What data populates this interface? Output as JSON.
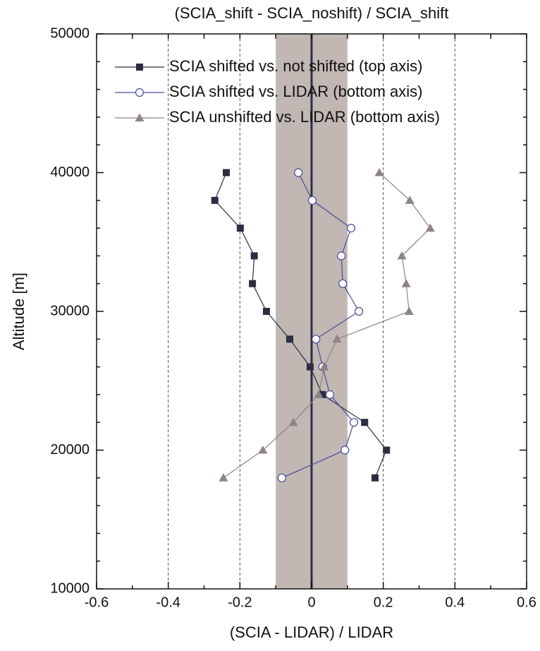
{
  "chart_data": {
    "type": "line",
    "title": "(SCIA_shift - SCIA_noshift) / SCIA_shift",
    "x_label": "(SCIA - LIDAR) / LIDAR",
    "y_label": "Altitude [m]",
    "y": [
      40000,
      38000,
      36000,
      34000,
      32000,
      30000,
      28000,
      26000,
      24000,
      22000,
      20000,
      18000
    ],
    "series": [
      {
        "name": "SCIA shifted vs. not shifted (top axis)",
        "color": "#2b2e40",
        "marker": "square",
        "axis": "x2",
        "values": [
          -0.238,
          -0.27,
          -0.199,
          -0.16,
          -0.165,
          -0.126,
          -0.061,
          -0.004,
          0.03,
          0.148,
          0.209,
          0.177
        ]
      },
      {
        "name": "SCIA shifted vs. LIDAR (bottom axis)",
        "color": "#4a4a9c",
        "marker": "circle",
        "axis": "x",
        "values": [
          -0.037,
          0.002,
          0.11,
          0.083,
          0.087,
          0.132,
          0.012,
          0.031,
          0.051,
          0.118,
          0.093,
          -0.083
        ]
      },
      {
        "name": "SCIA unshifted vs. LIDAR (bottom axis)",
        "color": "#8e8482",
        "marker": "triangle",
        "axis": "x",
        "values": [
          0.189,
          0.274,
          0.331,
          0.252,
          0.264,
          0.272,
          0.071,
          0.035,
          0.02,
          -0.051,
          -0.136,
          -0.246
        ]
      }
    ],
    "xlim": [
      -0.6,
      0.6
    ],
    "xticks": [
      -0.6,
      -0.4,
      -0.2,
      0.0,
      0.2,
      0.4,
      0.6
    ],
    "xminorticks": [
      -0.5,
      -0.3,
      -0.1,
      0.1,
      0.3,
      0.5
    ],
    "x2lim": [
      -0.6,
      0.6
    ],
    "x2ticks": [
      -0.6,
      -0.5,
      -0.4,
      -0.3,
      -0.2,
      -0.1,
      0.0,
      0.1,
      0.2,
      0.3,
      0.4,
      0.5,
      0.6
    ],
    "ylim": [
      10000,
      50000
    ],
    "yticks": [
      10000,
      20000,
      30000,
      40000,
      50000
    ],
    "yminorticks": [
      12000,
      14000,
      16000,
      18000,
      22000,
      24000,
      26000,
      28000,
      32000,
      34000,
      36000,
      38000,
      42000,
      44000,
      46000,
      48000
    ],
    "band": [
      -0.1,
      0.1
    ],
    "band_color": "#c1b7b3",
    "dashed_lines": [
      -0.4,
      -0.2,
      0.2,
      0.4
    ],
    "zero_line": 0.0,
    "legend": "upper-left"
  }
}
